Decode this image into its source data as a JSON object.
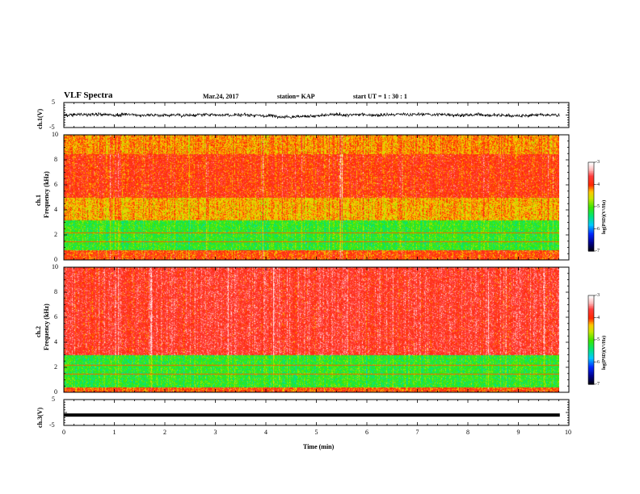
{
  "header": {
    "title": "VLF Spectra",
    "date": "Mar.24, 2017",
    "station": "station= KAP",
    "start": "start UT =  1 : 30 : 1"
  },
  "chart_data": [
    {
      "type": "line",
      "panel": "ch1-waveform",
      "ylabel": "ch.1(V)",
      "ylim": [
        -5,
        5
      ],
      "yticks": [
        "5",
        "-5"
      ],
      "xlim": [
        0,
        10
      ],
      "series": [
        {
          "values_summary": "noisy waveform centered near 0 V, amplitude about ±1.5 V"
        }
      ]
    },
    {
      "type": "heatmap",
      "panel": "ch1-spectrogram",
      "ylabel": "ch.1\nFrequency (kHz)",
      "ylim": [
        0,
        10
      ],
      "yticks": [
        "0",
        "2",
        "4",
        "6",
        "8",
        "10"
      ],
      "xlim": [
        0,
        10
      ],
      "colorbar": {
        "label": "log(PSD)(V²/Hz)",
        "range": [
          -7,
          -3
        ],
        "ticks": [
          "-3",
          "-4",
          "-5",
          "-6",
          "-7"
        ]
      },
      "bands": [
        {
          "freq_khz": [
            0,
            0.8
          ],
          "level": -4.0
        },
        {
          "freq_khz": [
            0.8,
            3.2
          ],
          "level": -5.1
        },
        {
          "freq_khz": [
            3.2,
            5.0
          ],
          "level": -4.3
        },
        {
          "freq_khz": [
            5.0,
            8.5
          ],
          "level": -3.9
        },
        {
          "freq_khz": [
            8.5,
            10
          ],
          "level": -4.2
        }
      ]
    },
    {
      "type": "heatmap",
      "panel": "ch2-spectrogram",
      "ylabel": "ch.2\nFrequency (kHz)",
      "ylim": [
        0,
        10
      ],
      "yticks": [
        "0",
        "2",
        "4",
        "6",
        "8",
        "10"
      ],
      "xlim": [
        0,
        10
      ],
      "colorbar": {
        "label": "log(PSD)(V²/Hz)",
        "range": [
          -7,
          -3
        ],
        "ticks": [
          "-3",
          "-4",
          "-5",
          "-6",
          "-7"
        ]
      },
      "bands": [
        {
          "freq_khz": [
            0,
            0.4
          ],
          "level": -4.0
        },
        {
          "freq_khz": [
            0.4,
            3.0
          ],
          "level": -5.1
        },
        {
          "freq_khz": [
            3.0,
            10
          ],
          "level": -3.7
        }
      ]
    },
    {
      "type": "line",
      "panel": "ch3-waveform",
      "ylabel": "ch.3(V)",
      "ylim": [
        -5,
        5
      ],
      "yticks": [
        "5",
        "-5"
      ],
      "xlim": [
        0,
        10
      ],
      "series": [
        {
          "values_summary": "flat line at about -1 V"
        }
      ]
    }
  ],
  "x_axis": {
    "label": "Time (min)",
    "ticks": [
      "0",
      "1",
      "2",
      "3",
      "4",
      "5",
      "6",
      "7",
      "8",
      "9",
      "10"
    ]
  }
}
